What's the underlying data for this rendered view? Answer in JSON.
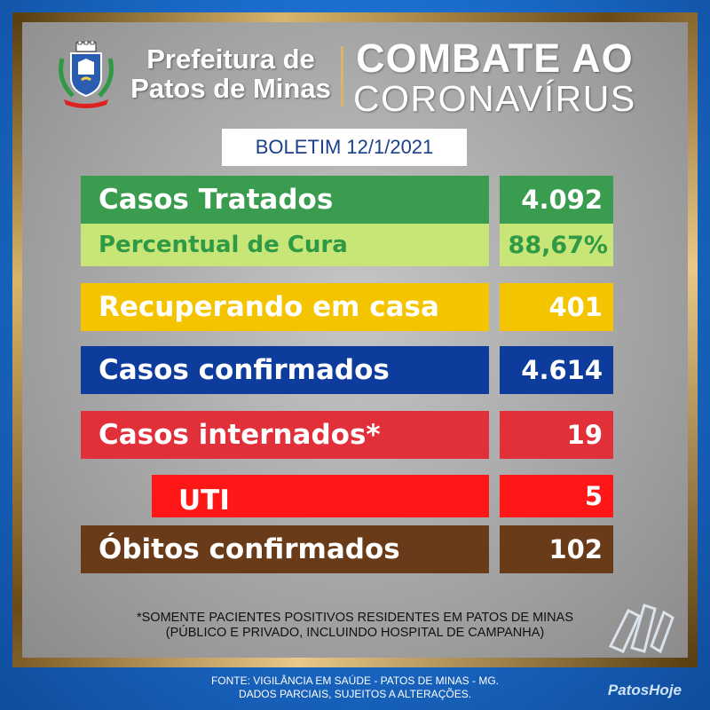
{
  "header": {
    "city_line1": "Prefeitura de",
    "city_line2": "Patos de Minas",
    "campaign_line1": "COMBATE AO",
    "campaign_line2": "CORONAVÍRUS"
  },
  "bulletin": "BOLETIM 12/1/2021",
  "stats": [
    {
      "label": "Casos Tratados",
      "value": "4.092",
      "color": "#3a9c4e",
      "text_color": "#ffffff"
    },
    {
      "label": "Percentual de Cura",
      "value": "88,67%",
      "color": "#c8e678",
      "text_color": "#2f9a45"
    },
    {
      "label": "Recuperando em casa",
      "value": "401",
      "color": "#f4c400",
      "text_color": "#ffffff"
    },
    {
      "label": "Casos confirmados",
      "value": "4.614",
      "color": "#0d3c9c",
      "text_color": "#ffffff"
    },
    {
      "label": "Casos internados*",
      "value": "19",
      "color": "#e2303a",
      "text_color": "#ffffff"
    },
    {
      "label": "UTI",
      "value": "5",
      "color": "#ff1616",
      "text_color": "#ffffff"
    },
    {
      "label": "Óbitos confirmados",
      "value": "102",
      "color": "#6a3b18",
      "text_color": "#ffffff"
    }
  ],
  "footnote": {
    "line1": "*SOMENTE PACIENTES POSITIVOS RESIDENTES EM PATOS DE MINAS",
    "line2": "(PÚBLICO E PRIVADO, INCLUINDO HOSPITAL DE CAMPANHA)"
  },
  "source": {
    "line1": "FONTE: VIGILÂNCIA EM SAÚDE - PATOS DE MINAS - MG.",
    "line2": "DADOS PARCIAIS, SUJEITOS A ALTERAÇÕES."
  },
  "watermark": "PatosHoje",
  "icons": {
    "crest": "municipal-crest-icon",
    "watermark_logo": "patoshoje-logo-icon"
  }
}
